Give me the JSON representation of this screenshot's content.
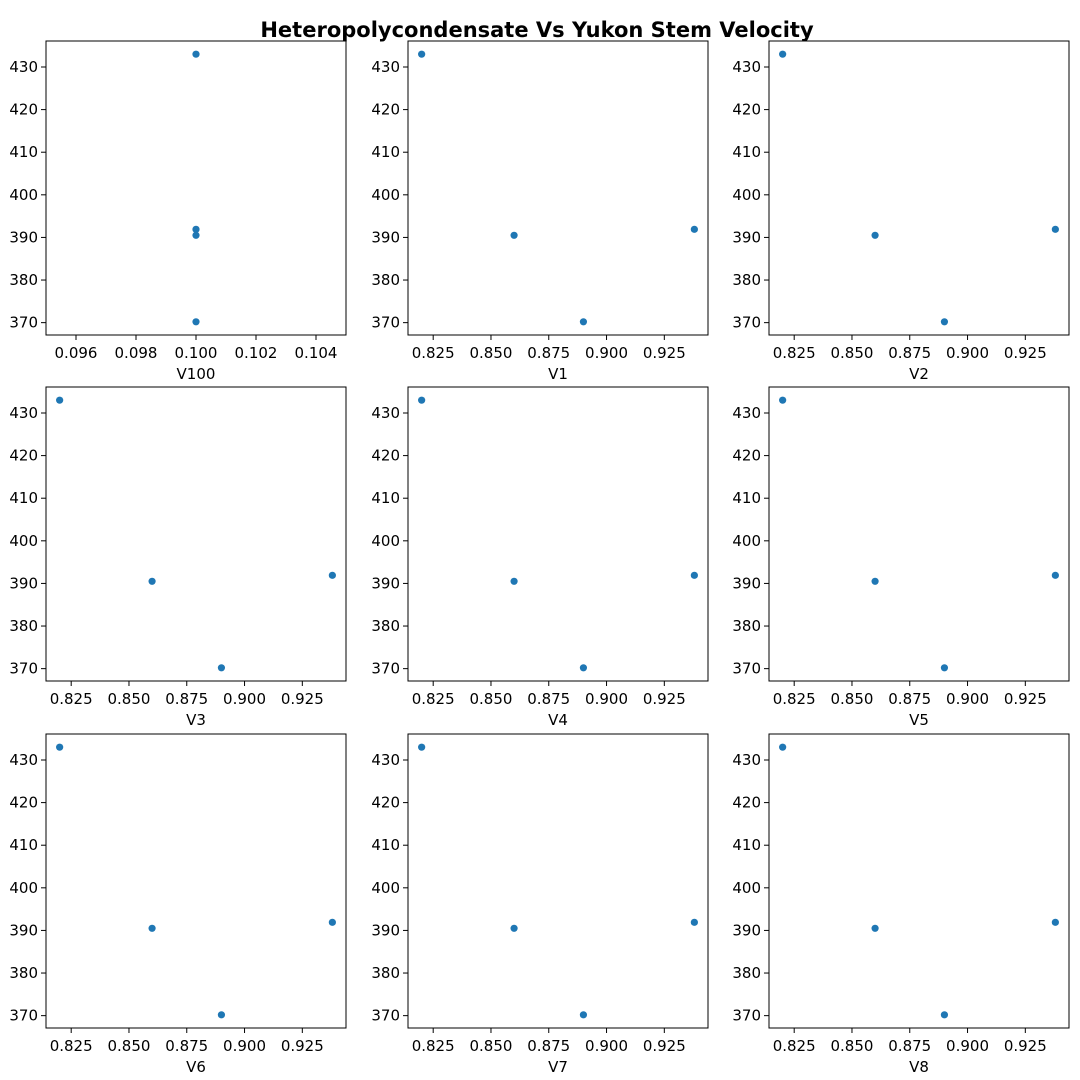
{
  "title": "Heteropolycondensate Vs Yukon Stem Velocity",
  "marker_color": "#1f77b4",
  "chart_data": [
    {
      "type": "scatter",
      "xlabel": "V100",
      "x": [
        0.1,
        0.1,
        0.1,
        0.1
      ],
      "y": [
        433,
        390.5,
        370.2,
        391.9
      ],
      "xlim": [
        0.095,
        0.105
      ],
      "ylim": [
        367.1,
        436.1
      ],
      "xticks": [
        "0.096",
        "0.098",
        "0.100",
        "0.102",
        "0.104"
      ],
      "xtick_values": [
        0.096,
        0.098,
        0.1,
        0.102,
        0.104
      ],
      "yticks": [
        "370",
        "380",
        "390",
        "400",
        "410",
        "420",
        "430"
      ],
      "ytick_values": [
        370,
        380,
        390,
        400,
        410,
        420,
        430
      ]
    },
    {
      "type": "scatter",
      "xlabel": "V1",
      "x": [
        0.82,
        0.86,
        0.89,
        0.938
      ],
      "y": [
        433,
        390.5,
        370.2,
        391.9
      ],
      "xlim": [
        0.8141,
        0.9439
      ],
      "ylim": [
        367.1,
        436.1
      ],
      "xticks": [
        "0.825",
        "0.850",
        "0.875",
        "0.900",
        "0.925"
      ],
      "xtick_values": [
        0.825,
        0.85,
        0.875,
        0.9,
        0.925
      ],
      "yticks": [
        "370",
        "380",
        "390",
        "400",
        "410",
        "420",
        "430"
      ],
      "ytick_values": [
        370,
        380,
        390,
        400,
        410,
        420,
        430
      ]
    },
    {
      "type": "scatter",
      "xlabel": "V2",
      "x": [
        0.82,
        0.86,
        0.89,
        0.938
      ],
      "y": [
        433,
        390.5,
        370.2,
        391.9
      ],
      "xlim": [
        0.8141,
        0.9439
      ],
      "ylim": [
        367.1,
        436.1
      ],
      "xticks": [
        "0.825",
        "0.850",
        "0.875",
        "0.900",
        "0.925"
      ],
      "xtick_values": [
        0.825,
        0.85,
        0.875,
        0.9,
        0.925
      ],
      "yticks": [
        "370",
        "380",
        "390",
        "400",
        "410",
        "420",
        "430"
      ],
      "ytick_values": [
        370,
        380,
        390,
        400,
        410,
        420,
        430
      ]
    },
    {
      "type": "scatter",
      "xlabel": "V3",
      "x": [
        0.82,
        0.86,
        0.89,
        0.938
      ],
      "y": [
        433,
        390.5,
        370.2,
        391.9
      ],
      "xlim": [
        0.8141,
        0.9439
      ],
      "ylim": [
        367.1,
        436.1
      ],
      "xticks": [
        "0.825",
        "0.850",
        "0.875",
        "0.900",
        "0.925"
      ],
      "xtick_values": [
        0.825,
        0.85,
        0.875,
        0.9,
        0.925
      ],
      "yticks": [
        "370",
        "380",
        "390",
        "400",
        "410",
        "420",
        "430"
      ],
      "ytick_values": [
        370,
        380,
        390,
        400,
        410,
        420,
        430
      ]
    },
    {
      "type": "scatter",
      "xlabel": "V4",
      "x": [
        0.82,
        0.86,
        0.89,
        0.938
      ],
      "y": [
        433,
        390.5,
        370.2,
        391.9
      ],
      "xlim": [
        0.8141,
        0.9439
      ],
      "ylim": [
        367.1,
        436.1
      ],
      "xticks": [
        "0.825",
        "0.850",
        "0.875",
        "0.900",
        "0.925"
      ],
      "xtick_values": [
        0.825,
        0.85,
        0.875,
        0.9,
        0.925
      ],
      "yticks": [
        "370",
        "380",
        "390",
        "400",
        "410",
        "420",
        "430"
      ],
      "ytick_values": [
        370,
        380,
        390,
        400,
        410,
        420,
        430
      ]
    },
    {
      "type": "scatter",
      "xlabel": "V5",
      "x": [
        0.82,
        0.86,
        0.89,
        0.938
      ],
      "y": [
        433,
        390.5,
        370.2,
        391.9
      ],
      "xlim": [
        0.8141,
        0.9439
      ],
      "ylim": [
        367.1,
        436.1
      ],
      "xticks": [
        "0.825",
        "0.850",
        "0.875",
        "0.900",
        "0.925"
      ],
      "xtick_values": [
        0.825,
        0.85,
        0.875,
        0.9,
        0.925
      ],
      "yticks": [
        "370",
        "380",
        "390",
        "400",
        "410",
        "420",
        "430"
      ],
      "ytick_values": [
        370,
        380,
        390,
        400,
        410,
        420,
        430
      ]
    },
    {
      "type": "scatter",
      "xlabel": "V6",
      "x": [
        0.82,
        0.86,
        0.89,
        0.938
      ],
      "y": [
        433,
        390.5,
        370.2,
        391.9
      ],
      "xlim": [
        0.8141,
        0.9439
      ],
      "ylim": [
        367.1,
        436.1
      ],
      "xticks": [
        "0.825",
        "0.850",
        "0.875",
        "0.900",
        "0.925"
      ],
      "xtick_values": [
        0.825,
        0.85,
        0.875,
        0.9,
        0.925
      ],
      "yticks": [
        "370",
        "380",
        "390",
        "400",
        "410",
        "420",
        "430"
      ],
      "ytick_values": [
        370,
        380,
        390,
        400,
        410,
        420,
        430
      ]
    },
    {
      "type": "scatter",
      "xlabel": "V7",
      "x": [
        0.82,
        0.86,
        0.89,
        0.938
      ],
      "y": [
        433,
        390.5,
        370.2,
        391.9
      ],
      "xlim": [
        0.8141,
        0.9439
      ],
      "ylim": [
        367.1,
        436.1
      ],
      "xticks": [
        "0.825",
        "0.850",
        "0.875",
        "0.900",
        "0.925"
      ],
      "xtick_values": [
        0.825,
        0.85,
        0.875,
        0.9,
        0.925
      ],
      "yticks": [
        "370",
        "380",
        "390",
        "400",
        "410",
        "420",
        "430"
      ],
      "ytick_values": [
        370,
        380,
        390,
        400,
        410,
        420,
        430
      ]
    },
    {
      "type": "scatter",
      "xlabel": "V8",
      "x": [
        0.82,
        0.86,
        0.89,
        0.938
      ],
      "y": [
        433,
        390.5,
        370.2,
        391.9
      ],
      "xlim": [
        0.8141,
        0.9439
      ],
      "ylim": [
        367.1,
        436.1
      ],
      "xticks": [
        "0.825",
        "0.850",
        "0.875",
        "0.900",
        "0.925"
      ],
      "xtick_values": [
        0.825,
        0.85,
        0.875,
        0.9,
        0.925
      ],
      "yticks": [
        "370",
        "380",
        "390",
        "400",
        "410",
        "420",
        "430"
      ],
      "ytick_values": [
        370,
        380,
        390,
        400,
        410,
        420,
        430
      ]
    }
  ]
}
